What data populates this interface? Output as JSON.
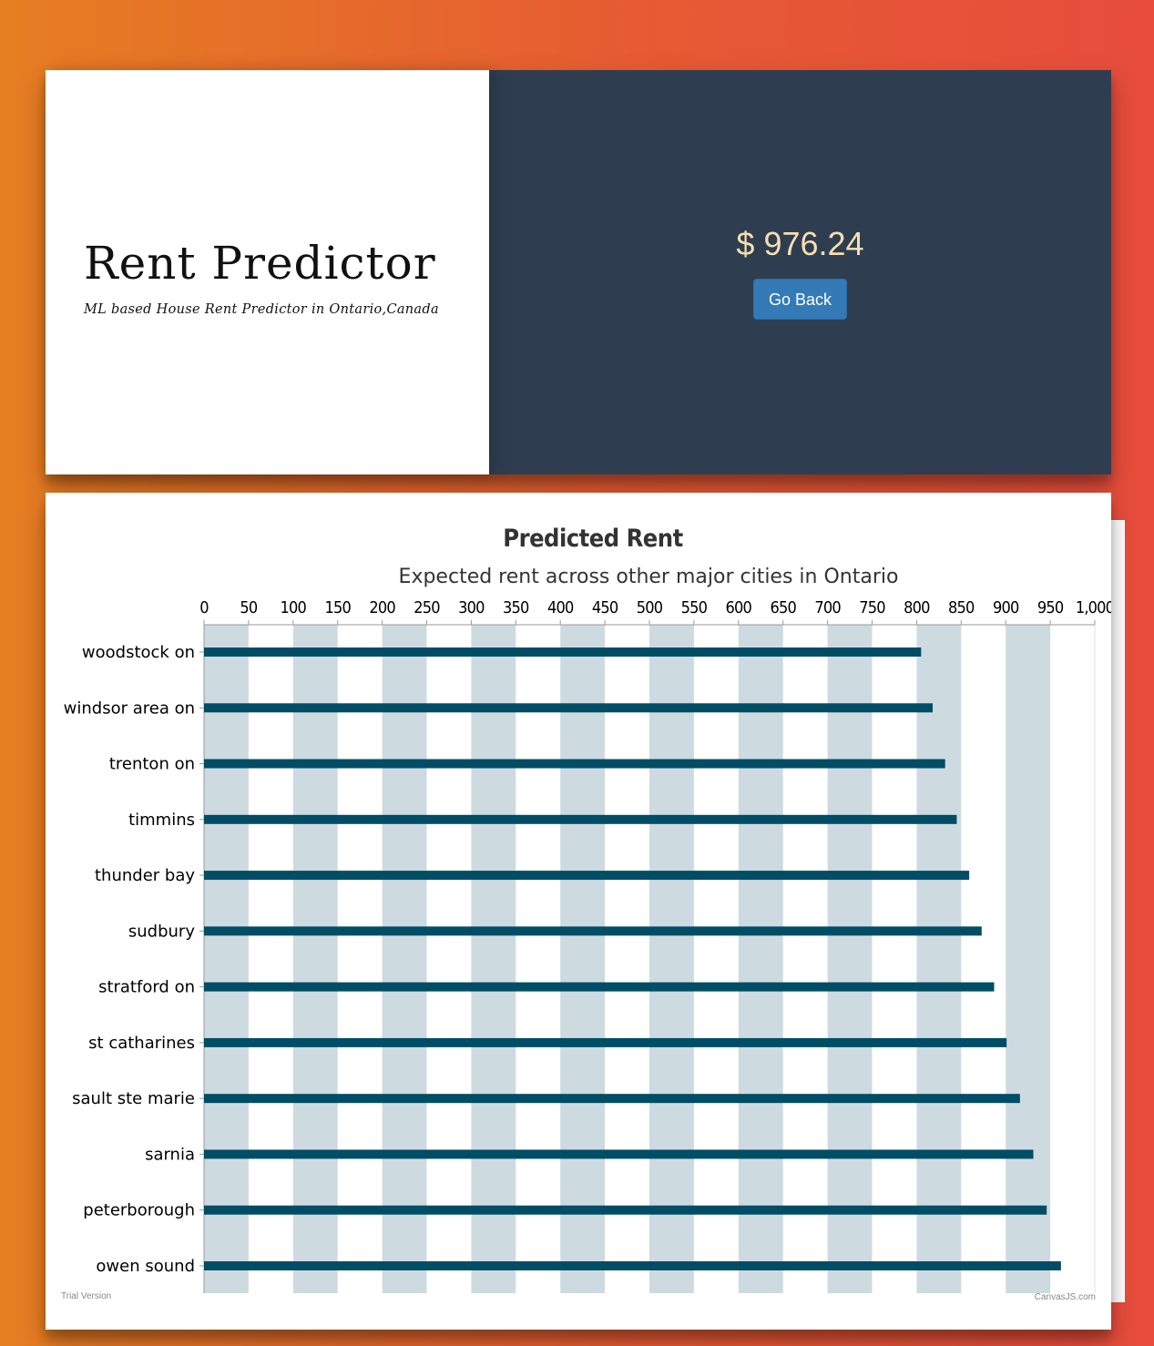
{
  "header": {
    "title": "Rent Predictor",
    "subtitle": "ML based House Rent Predictor in Ontario,Canada"
  },
  "result": {
    "price": "$ 976.24",
    "go_back_label": "Go Back"
  },
  "colors": {
    "accent": "#337ab7",
    "panel_dark": "#2e3e50",
    "price_text": "#f7deb0",
    "bar": "#004d65",
    "band": "#cddbe1"
  },
  "chart_data": {
    "type": "bar",
    "orientation": "horizontal",
    "title": "Predicted Rent",
    "subtitle": "Expected rent across other major cities in Ontario",
    "categories": [
      "woodstock on",
      "windsor area on",
      "trenton on",
      "timmins",
      "thunder bay",
      "sudbury",
      "stratford on",
      "st catharines",
      "sault ste marie",
      "sarnia",
      "peterborough",
      "owen sound"
    ],
    "values": [
      805,
      818,
      832,
      845,
      859,
      873,
      887,
      901,
      916,
      931,
      946,
      962
    ],
    "xlim": [
      0,
      1000
    ],
    "ticks": [
      "0",
      "50",
      "100",
      "150",
      "200",
      "250",
      "300",
      "350",
      "400",
      "450",
      "500",
      "550",
      "600",
      "650",
      "700",
      "750",
      "800",
      "850",
      "900",
      "950",
      "1,000"
    ],
    "axis_position": "top",
    "alternating_bands": true,
    "footer_left": "Trial Version",
    "footer_right": "CanvasJS.com"
  }
}
